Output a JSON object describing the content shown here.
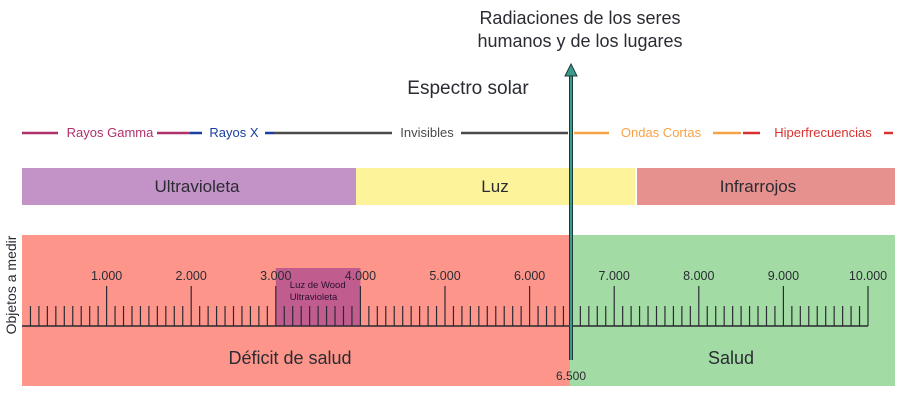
{
  "title_top": [
    "Radiaciones de los seres",
    "humanos y de los lugares"
  ],
  "spectrum_title": "Espectro solar",
  "ranges": [
    {
      "label": "Rayos Gamma",
      "color": "#b0306b"
    },
    {
      "label": "Rayos X",
      "color": "#1a3ea0"
    },
    {
      "label": "Invisibles",
      "color": "#4a4a4a"
    },
    {
      "label": "Ondas Cortas",
      "color": "#f7a246"
    },
    {
      "label": "Hiperfrecuencias",
      "color": "#d8312f"
    }
  ],
  "bands": [
    {
      "label": "Ultravioleta",
      "color": "#c393c8"
    },
    {
      "label": "Luz",
      "color": "#fdf39b"
    },
    {
      "label": "Infrarrojos",
      "color": "#e6918e"
    }
  ],
  "side_label": "Objetos a medir",
  "scale": {
    "min": 0,
    "max": 10000,
    "major_step": 1000,
    "minor_step": 100,
    "major_labels": [
      "1.000",
      "2.000",
      "3.000",
      "4.000",
      "5.000",
      "6.000",
      "7.000",
      "8.000",
      "9.000",
      "10.000"
    ],
    "threshold": 6500,
    "threshold_label": "6.500"
  },
  "highlight": {
    "from": 3000,
    "to": 4000,
    "lines": [
      "Luz de Wood",
      "Ultravioleta"
    ],
    "color": "#c05c8e"
  },
  "zones": [
    {
      "label": "Déficit de salud",
      "color": "#fd958a"
    },
    {
      "label": "Salud",
      "color": "#a2dba3"
    }
  ],
  "arrow_color": "#3a9a8e"
}
